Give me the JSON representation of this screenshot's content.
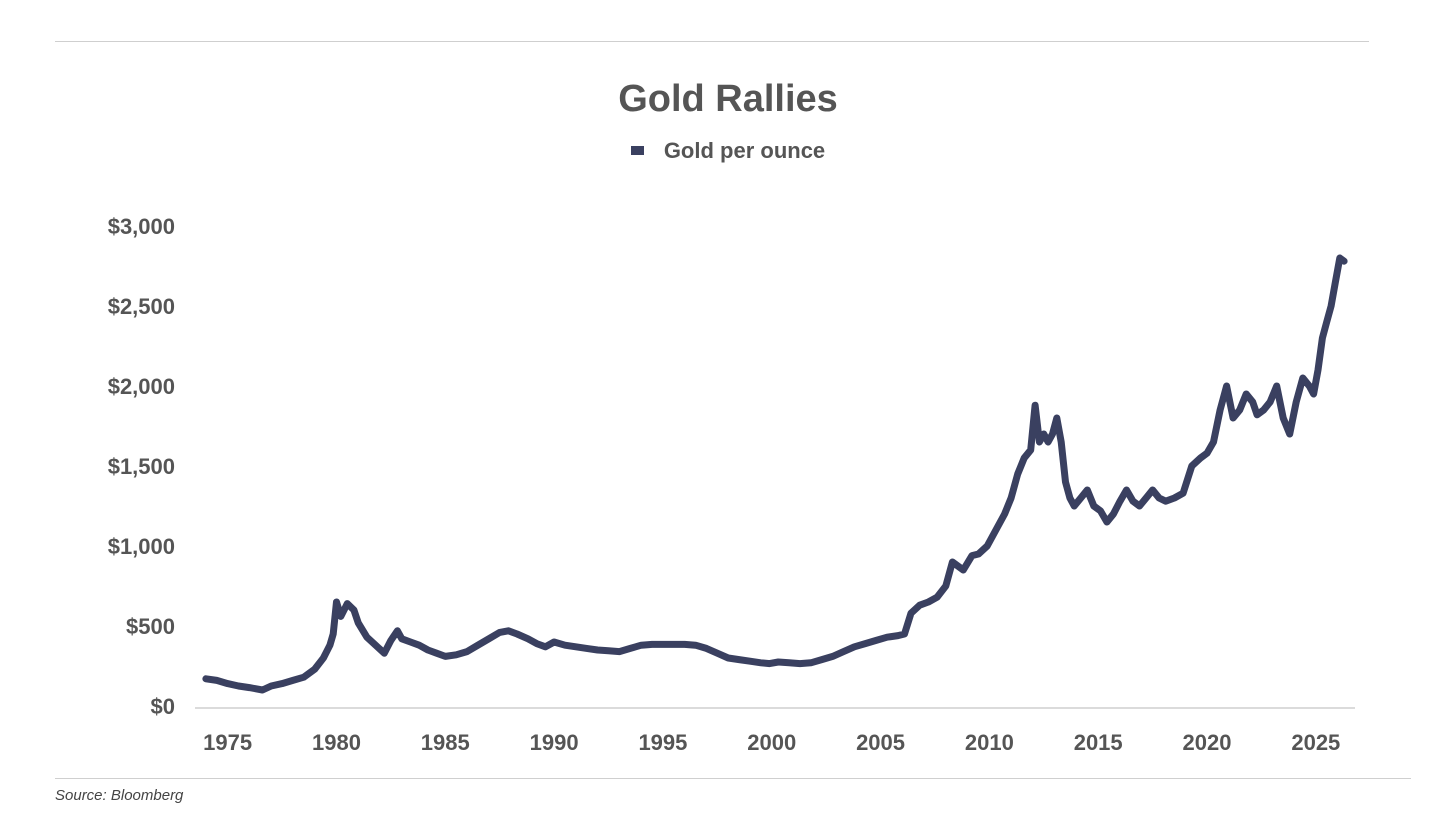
{
  "chart_data": {
    "type": "line",
    "title": "Gold Rallies",
    "legend": [
      "Gold per ounce"
    ],
    "source": "Source: Bloomberg",
    "xlabel": "",
    "ylabel": "",
    "xlim": [
      1973.5,
      2026.8
    ],
    "ylim": [
      0,
      3000
    ],
    "grid": false,
    "legend_position": "top-center",
    "line_color": "#3a4060",
    "x_ticks": [
      1975,
      1980,
      1985,
      1990,
      1995,
      2000,
      2005,
      2010,
      2015,
      2020,
      2025
    ],
    "x_tick_labels": [
      "1975",
      "1980",
      "1985",
      "1990",
      "1995",
      "2000",
      "2005",
      "2010",
      "2015",
      "2020",
      "2025"
    ],
    "y_ticks": [
      0,
      500,
      1000,
      1500,
      2000,
      2500,
      3000
    ],
    "y_tick_labels": [
      "$0",
      "$500",
      "$1,000",
      "$1,500",
      "$2,000",
      "$2,500",
      "$3,000"
    ],
    "series": [
      {
        "name": "Gold per ounce",
        "x": [
          1974.0,
          1974.5,
          1975.0,
          1975.5,
          1976.0,
          1976.6,
          1977.0,
          1977.5,
          1978.0,
          1978.5,
          1979.0,
          1979.4,
          1979.7,
          1979.85,
          1980.0,
          1980.2,
          1980.5,
          1980.8,
          1981.0,
          1981.4,
          1981.8,
          1982.2,
          1982.5,
          1982.8,
          1983.0,
          1983.4,
          1983.8,
          1984.2,
          1984.6,
          1985.0,
          1985.5,
          1986.0,
          1986.5,
          1987.0,
          1987.5,
          1987.9,
          1988.3,
          1988.8,
          1989.2,
          1989.6,
          1990.0,
          1990.5,
          1991.0,
          1991.5,
          1992.0,
          1992.5,
          1993.0,
          1993.5,
          1994.0,
          1994.5,
          1995.0,
          1995.5,
          1996.0,
          1996.5,
          1997.0,
          1997.5,
          1998.0,
          1998.5,
          1999.0,
          1999.5,
          1999.9,
          2000.3,
          2000.8,
          2001.3,
          2001.8,
          2002.3,
          2002.8,
          2003.3,
          2003.8,
          2004.3,
          2004.8,
          2005.3,
          2005.8,
          2006.1,
          2006.4,
          2006.8,
          2007.2,
          2007.6,
          2008.0,
          2008.3,
          2008.8,
          2009.2,
          2009.5,
          2009.9,
          2010.3,
          2010.7,
          2011.0,
          2011.3,
          2011.6,
          2011.9,
          2012.1,
          2012.3,
          2012.5,
          2012.7,
          2012.9,
          2013.1,
          2013.3,
          2013.5,
          2013.7,
          2013.9,
          2014.2,
          2014.5,
          2014.8,
          2015.1,
          2015.4,
          2015.7,
          2016.0,
          2016.3,
          2016.6,
          2016.9,
          2017.2,
          2017.5,
          2017.8,
          2018.1,
          2018.5,
          2018.9,
          2019.3,
          2019.7,
          2020.0,
          2020.3,
          2020.6,
          2020.9,
          2021.2,
          2021.5,
          2021.8,
          2022.1,
          2022.3,
          2022.6,
          2022.9,
          2023.2,
          2023.5,
          2023.8,
          2024.1,
          2024.4,
          2024.7,
          2024.9,
          2025.1,
          2025.3,
          2025.5,
          2025.7,
          2025.9,
          2026.1,
          2026.3
        ],
        "y": [
          170,
          160,
          140,
          125,
          115,
          100,
          125,
          140,
          160,
          180,
          230,
          300,
          380,
          450,
          650,
          560,
          640,
          600,
          520,
          430,
          380,
          330,
          410,
          470,
          420,
          400,
          380,
          350,
          330,
          310,
          320,
          340,
          380,
          420,
          460,
          470,
          450,
          420,
          390,
          370,
          400,
          380,
          370,
          360,
          350,
          345,
          340,
          360,
          380,
          385,
          385,
          385,
          385,
          380,
          360,
          330,
          300,
          290,
          280,
          270,
          265,
          275,
          270,
          265,
          270,
          290,
          310,
          340,
          370,
          390,
          410,
          430,
          440,
          450,
          580,
          630,
          650,
          680,
          750,
          900,
          850,
          940,
          950,
          1000,
          1100,
          1200,
          1300,
          1450,
          1550,
          1600,
          1880,
          1650,
          1700,
          1650,
          1700,
          1800,
          1650,
          1400,
          1300,
          1250,
          1300,
          1350,
          1250,
          1220,
          1150,
          1200,
          1280,
          1350,
          1280,
          1250,
          1300,
          1350,
          1300,
          1280,
          1300,
          1330,
          1500,
          1550,
          1580,
          1650,
          1850,
          2000,
          1800,
          1850,
          1950,
          1900,
          1820,
          1850,
          1900,
          2000,
          1800,
          1700,
          1900,
          2050,
          2000,
          1950,
          2100,
          2300,
          2400,
          2500,
          2650,
          2800,
          2780
        ]
      }
    ]
  }
}
